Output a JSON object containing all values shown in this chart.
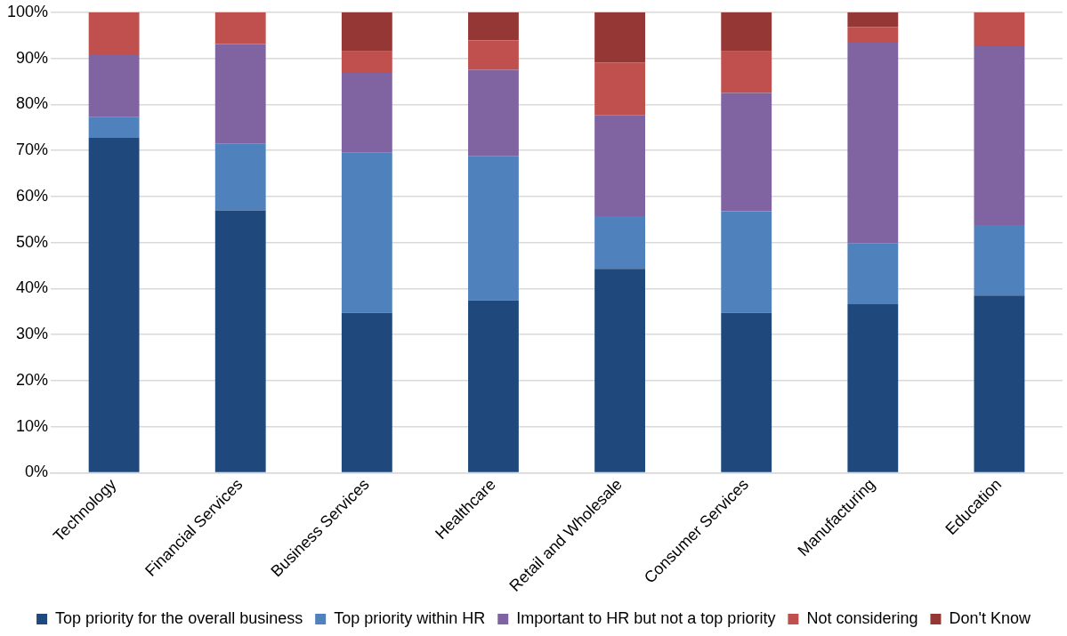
{
  "chart_data": {
    "type": "bar",
    "stacked": true,
    "categories": [
      "Technology",
      "Financial Services",
      "Business Services",
      "Healthcare",
      "Retail and Wholesale",
      "Consumer Services",
      "Manufacturing",
      "Education"
    ],
    "series": [
      {
        "name": "Top priority for the overall business",
        "color": "#1f497d",
        "values": [
          72.7,
          57.0,
          34.7,
          37.4,
          44.3,
          34.7,
          36.6,
          38.5
        ]
      },
      {
        "name": "Top priority within HR",
        "color": "#4f81bd",
        "values": [
          4.5,
          14.4,
          34.8,
          31.3,
          11.4,
          22.1,
          13.3,
          15.3
        ]
      },
      {
        "name": "Important to HR but not a top priority",
        "color": "#8064a2",
        "values": [
          13.5,
          21.7,
          17.5,
          18.8,
          22.0,
          25.7,
          43.5,
          38.8
        ]
      },
      {
        "name": "Not considering",
        "color": "#c0504d",
        "values": [
          9.3,
          6.9,
          4.5,
          6.4,
          11.4,
          9.0,
          3.4,
          7.4
        ]
      },
      {
        "name": "Don't Know",
        "color": "#953735",
        "values": [
          0,
          0,
          8.5,
          6.1,
          10.9,
          8.5,
          3.2,
          0
        ]
      }
    ],
    "ylim": [
      0,
      100
    ],
    "yticks": [
      {
        "value": 0,
        "label": "0%"
      },
      {
        "value": 10,
        "label": "10%"
      },
      {
        "value": 20,
        "label": "20%"
      },
      {
        "value": 30,
        "label": "30%"
      },
      {
        "value": 40,
        "label": "40%"
      },
      {
        "value": 50,
        "label": "50%"
      },
      {
        "value": 60,
        "label": "60%"
      },
      {
        "value": 70,
        "label": "70%"
      },
      {
        "value": 80,
        "label": "80%"
      },
      {
        "value": 90,
        "label": "90%"
      },
      {
        "value": 100,
        "label": "100%"
      }
    ],
    "grid": "y",
    "legend": "bottom"
  }
}
